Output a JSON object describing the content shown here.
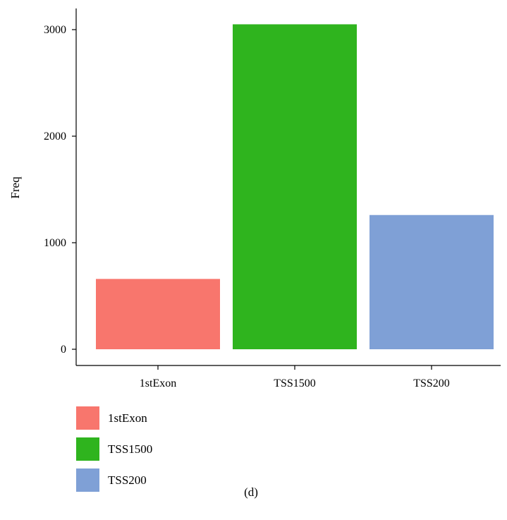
{
  "chart_data": {
    "type": "bar",
    "categories": [
      "1stExon",
      "TSS1500",
      "TSS200"
    ],
    "values": [
      660,
      3050,
      1260
    ],
    "colors": [
      "#f8766d",
      "#2fb41e",
      "#7fa0d6"
    ],
    "title": "",
    "xlabel": "",
    "ylabel": "Freq",
    "ylim": [
      0,
      3220
    ],
    "yticks": [
      0,
      1000,
      2000,
      3000
    ],
    "grid": false,
    "legend": {
      "placement": "bottom-left",
      "entries": [
        "1stExon",
        "TSS1500",
        "TSS200"
      ]
    }
  },
  "caption": "(d)"
}
